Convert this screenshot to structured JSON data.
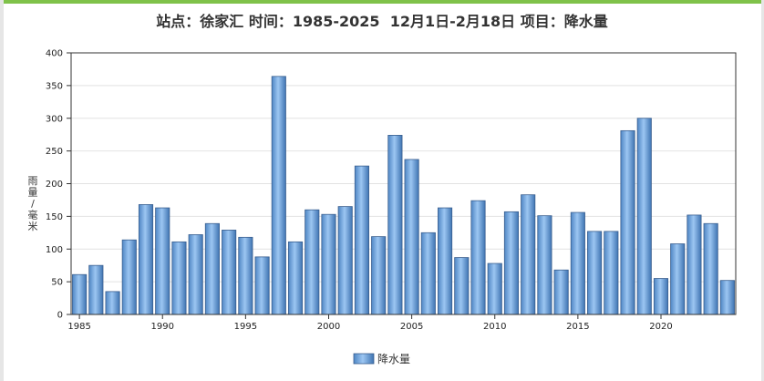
{
  "title": "站点：徐家汇 时间：1985-2025  12月1日-2月18日 项目：降水量",
  "chart_data": {
    "type": "bar",
    "ylabel": "雨量/毫米",
    "ylim": [
      0,
      400
    ],
    "yticks": [
      0,
      50,
      100,
      150,
      200,
      250,
      300,
      350,
      400
    ],
    "xticks": [
      1985,
      1990,
      1995,
      2000,
      2005,
      2010,
      2015,
      2020
    ],
    "grid": true,
    "legend": "bottom-center",
    "series": [
      {
        "name": "降水量",
        "color": "#6fa8e0",
        "x": [
          1985,
          1986,
          1987,
          1988,
          1989,
          1990,
          1991,
          1992,
          1993,
          1994,
          1995,
          1996,
          1997,
          1998,
          1999,
          2000,
          2001,
          2002,
          2003,
          2004,
          2005,
          2006,
          2007,
          2008,
          2009,
          2010,
          2011,
          2012,
          2013,
          2014,
          2015,
          2016,
          2017,
          2018,
          2019,
          2020,
          2021,
          2022,
          2023,
          2024
        ],
        "values": [
          61,
          75,
          35,
          114,
          168,
          163,
          111,
          122,
          139,
          129,
          118,
          88,
          364,
          111,
          160,
          153,
          165,
          227,
          119,
          274,
          237,
          125,
          163,
          87,
          174,
          78,
          157,
          183,
          151,
          68,
          156,
          127,
          127,
          281,
          300,
          55,
          108,
          152,
          139,
          52
        ]
      }
    ]
  }
}
